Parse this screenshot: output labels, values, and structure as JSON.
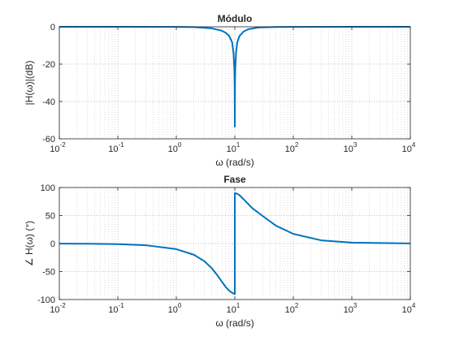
{
  "chart_data": [
    {
      "type": "line",
      "title": "Módulo",
      "xlabel": "ω (rad/s)",
      "ylabel": "|H(ω)|(dB)",
      "xscale": "log",
      "xlim": [
        0.01,
        10000
      ],
      "ylim": [
        -60,
        0
      ],
      "xtick_base": "10",
      "xtick_exponents": [
        "-2",
        "-1",
        "0",
        "1",
        "2",
        "3",
        "4"
      ],
      "yticks": [
        "0",
        "-20",
        "-40",
        "-60"
      ],
      "ytick_values": [
        0,
        -20,
        -40,
        -60
      ],
      "grid": true,
      "minor_grid": true,
      "series": [
        {
          "color": "#0072BD",
          "x": [
            0.01,
            0.1,
            1,
            2,
            4,
            6,
            7,
            8,
            9,
            9.5,
            9.8,
            9.9,
            9.95,
            10,
            10.05,
            10.1,
            10.2,
            10.5,
            11,
            12,
            14,
            17,
            25,
            50,
            100,
            1000,
            10000
          ],
          "y": [
            0,
            0,
            -0.04,
            -0.18,
            -0.81,
            -2.1,
            -3.2,
            -4.9,
            -8.3,
            -14.0,
            -22.1,
            -28.0,
            -34.0,
            -53.5,
            -34.0,
            -28.0,
            -22.1,
            -14.0,
            -8.4,
            -5.0,
            -2.6,
            -1.3,
            -0.4,
            -0.09,
            -0.04,
            0,
            0
          ]
        }
      ]
    },
    {
      "type": "line",
      "title": "Fase",
      "xlabel": "ω (rad/s)",
      "ylabel": "∠ H(ω) (°)",
      "xscale": "log",
      "xlim": [
        0.01,
        10000
      ],
      "ylim": [
        -100,
        100
      ],
      "xtick_base": "10",
      "xtick_exponents": [
        "-2",
        "-1",
        "0",
        "1",
        "2",
        "3",
        "4"
      ],
      "yticks": [
        "100",
        "50",
        "0",
        "-50",
        "-100"
      ],
      "ytick_values": [
        100,
        50,
        0,
        -50,
        -100
      ],
      "grid": true,
      "minor_grid": true,
      "series": [
        {
          "color": "#0072BD",
          "x": [
            0.01,
            0.03,
            0.1,
            0.3,
            1,
            2,
            3,
            4,
            5,
            6,
            7,
            8,
            9,
            9.5,
            9.9,
            10,
            10,
            10.1,
            10.5,
            11,
            12,
            13,
            15,
            20,
            30,
            50,
            100,
            300,
            1000,
            10000
          ],
          "y": [
            -0.1,
            -0.3,
            -1.0,
            -3.0,
            -10.0,
            -20.1,
            -31.3,
            -43.6,
            -56.3,
            -68.0,
            -77.7,
            -84.1,
            -88.0,
            -89.2,
            -89.9,
            -90,
            90,
            89.9,
            89.5,
            88.9,
            86.3,
            82.8,
            76.3,
            62.9,
            49.1,
            32.1,
            17.2,
            5.7,
            1.7,
            0.17
          ]
        }
      ]
    }
  ]
}
